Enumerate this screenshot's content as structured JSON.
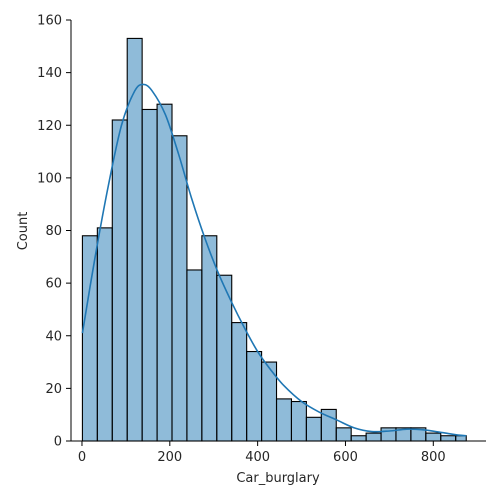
{
  "chart_data": {
    "type": "bar",
    "subtype": "histogram",
    "title": "",
    "xlabel": "Car_burglary",
    "ylabel": "Count",
    "xlim": [
      -25,
      920
    ],
    "ylim": [
      0,
      160
    ],
    "xticks": [
      0,
      200,
      400,
      600,
      800
    ],
    "yticks": [
      0,
      20,
      40,
      60,
      80,
      100,
      120,
      140,
      160
    ],
    "bin_edges": [
      1,
      35,
      69,
      103,
      137,
      171,
      205,
      239,
      273,
      307,
      341,
      375,
      409,
      443,
      477,
      511,
      545,
      579,
      613,
      647,
      681,
      715,
      749,
      783,
      817,
      851,
      875
    ],
    "counts": [
      78,
      81,
      122,
      153,
      126,
      128,
      116,
      65,
      78,
      63,
      45,
      34,
      30,
      16,
      15,
      9,
      12,
      5,
      2,
      3,
      5,
      5,
      5,
      3,
      2,
      2
    ],
    "kde": {
      "x": [
        1,
        30,
        60,
        90,
        120,
        140,
        160,
        190,
        220,
        250,
        280,
        310,
        340,
        370,
        400,
        430,
        460,
        500,
        540,
        580,
        620,
        660,
        700,
        740,
        780,
        820,
        860,
        875
      ],
      "y": [
        41,
        70,
        97,
        120,
        133,
        135.5,
        133,
        124,
        109,
        92,
        77,
        64,
        53,
        43,
        34,
        27,
        21,
        15,
        11,
        8,
        5,
        3.6,
        3.8,
        4.5,
        4.2,
        3.2,
        2.2,
        2
      ]
    },
    "colors": {
      "bar_fill": "rgba(31,119,180,0.5)",
      "bar_edge": "#000000",
      "kde_line": "#1f77b4"
    }
  }
}
